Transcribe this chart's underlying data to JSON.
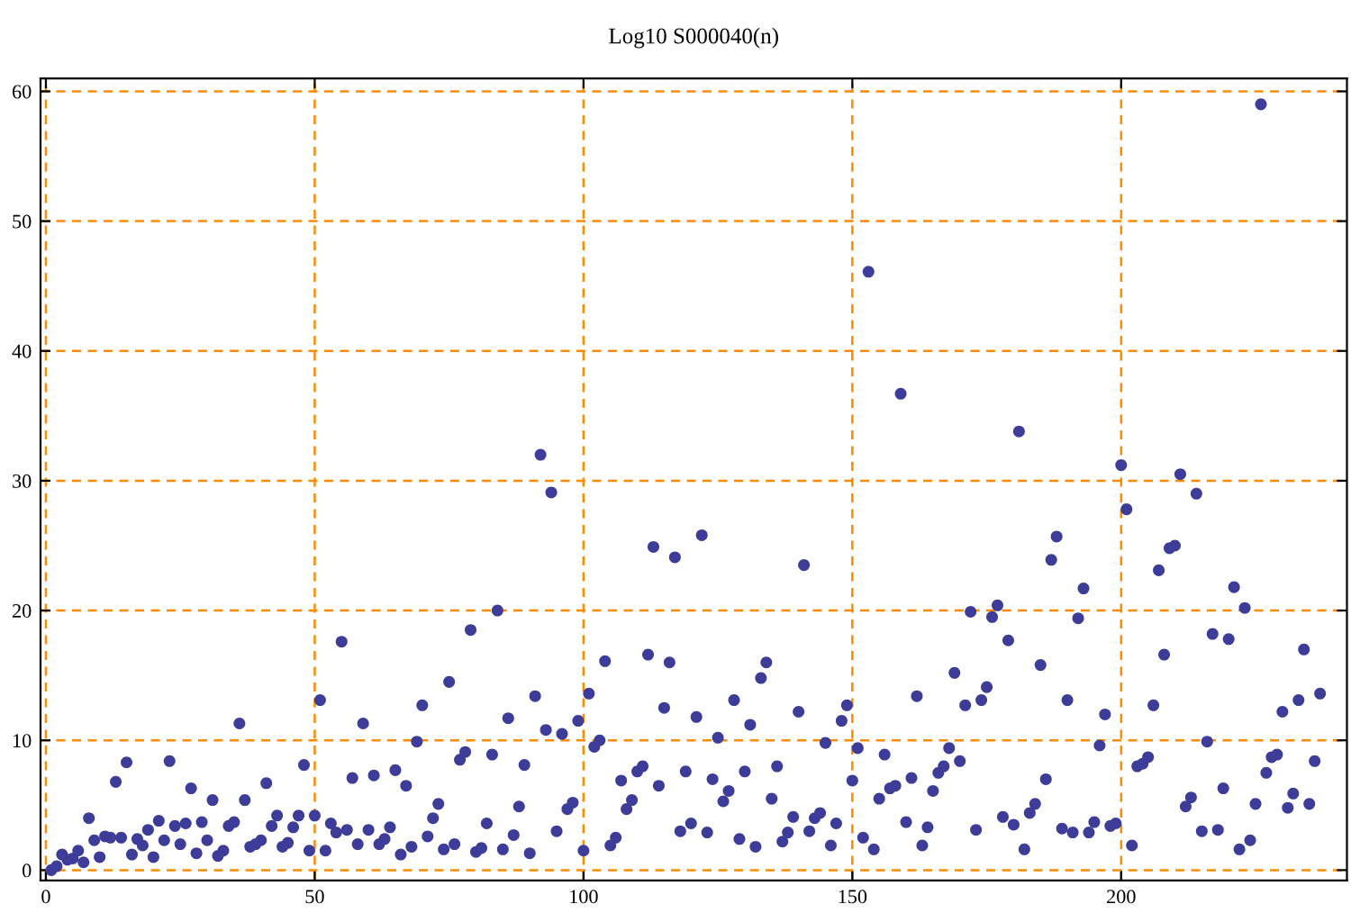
{
  "chart_data": {
    "type": "scatter",
    "title": "Log10 S000040(n)",
    "x": [
      1,
      2,
      3,
      4,
      5,
      6,
      7,
      8,
      9,
      10,
      11,
      12,
      13,
      14,
      15,
      16,
      17,
      18,
      19,
      20,
      21,
      22,
      23,
      24,
      25,
      26,
      27,
      28,
      29,
      30,
      31,
      32,
      33,
      34,
      35,
      36,
      37,
      38,
      39,
      40,
      41,
      42,
      43,
      44,
      45,
      46,
      47,
      48,
      49,
      50,
      51,
      52,
      53,
      54,
      55,
      56,
      57,
      58,
      59,
      60,
      61,
      62,
      63,
      64,
      65,
      66,
      67,
      68,
      69,
      70,
      71,
      72,
      73,
      74,
      75,
      76,
      77,
      78,
      79,
      80,
      81,
      82,
      83,
      84,
      85,
      86,
      87,
      88,
      89,
      90,
      91,
      92,
      93,
      94,
      95,
      96,
      97,
      98,
      99,
      100,
      101,
      102,
      103,
      104,
      105,
      106,
      107,
      108,
      109,
      110,
      111,
      112,
      113,
      114,
      115,
      116,
      117,
      118,
      119,
      120,
      121,
      122,
      123,
      124,
      125,
      126,
      127,
      128,
      129,
      130,
      131,
      132,
      133,
      134,
      135,
      136,
      137,
      138,
      139,
      140,
      141,
      142,
      143,
      144,
      145,
      146,
      147,
      148,
      149,
      150,
      151,
      152,
      153,
      154,
      155,
      156,
      157,
      158,
      159,
      160,
      161,
      162,
      163,
      164,
      165,
      166,
      167,
      168,
      169,
      170,
      171,
      172,
      173,
      174,
      175,
      176,
      177,
      178,
      179,
      180,
      181,
      182,
      183,
      184,
      185,
      186,
      187,
      188,
      189,
      190,
      191,
      192,
      193,
      194,
      195,
      196,
      197,
      198,
      199,
      200,
      201,
      202,
      203,
      204,
      205,
      206,
      207,
      208,
      209,
      210,
      211,
      212,
      213,
      214,
      215,
      216,
      217,
      218,
      219,
      220,
      221,
      222,
      223,
      224,
      225,
      226,
      227,
      228,
      229,
      230,
      231,
      232,
      233,
      234,
      235,
      236,
      237
    ],
    "values": [
      0.0,
      0.3,
      1.2,
      0.8,
      0.9,
      1.5,
      0.6,
      4.0,
      2.3,
      1.0,
      2.6,
      2.5,
      6.8,
      2.5,
      8.3,
      1.2,
      2.4,
      1.9,
      3.1,
      1.0,
      3.8,
      2.3,
      8.4,
      3.4,
      2.0,
      3.6,
      6.3,
      1.3,
      3.7,
      2.3,
      5.4,
      1.1,
      1.5,
      3.4,
      3.7,
      11.3,
      5.4,
      1.8,
      2.0,
      2.3,
      6.7,
      3.4,
      4.2,
      1.8,
      2.1,
      3.3,
      4.2,
      8.1,
      1.5,
      4.2,
      13.1,
      1.5,
      3.6,
      2.9,
      17.6,
      3.1,
      7.1,
      2.0,
      11.3,
      3.1,
      7.3,
      2.0,
      2.4,
      3.3,
      7.7,
      1.2,
      6.5,
      1.8,
      9.9,
      12.7,
      2.6,
      4.0,
      5.1,
      1.6,
      14.5,
      2.0,
      8.5,
      9.1,
      18.5,
      1.4,
      1.7,
      3.6,
      8.9,
      20.0,
      1.6,
      11.7,
      2.7,
      4.9,
      8.1,
      1.3,
      13.4,
      32.0,
      10.8,
      29.1,
      3.0,
      10.5,
      4.7,
      5.2,
      11.5,
      1.5,
      13.6,
      9.5,
      10.0,
      16.1,
      1.9,
      2.5,
      6.9,
      4.7,
      5.4,
      7.6,
      8.0,
      16.6,
      24.9,
      6.5,
      12.5,
      16.0,
      24.1,
      3.0,
      7.6,
      3.6,
      11.8,
      25.8,
      2.9,
      7.0,
      10.2,
      5.3,
      6.1,
      13.1,
      2.4,
      7.6,
      11.2,
      1.8,
      14.8,
      16.0,
      5.5,
      8.0,
      2.2,
      2.9,
      4.1,
      12.2,
      23.5,
      3.0,
      4.0,
      4.4,
      9.8,
      1.9,
      3.6,
      11.5,
      12.7,
      6.9,
      9.4,
      2.5,
      46.1,
      1.6,
      5.5,
      8.9,
      6.3,
      6.5,
      36.7,
      3.7,
      7.1,
      13.4,
      1.9,
      3.3,
      6.1,
      7.5,
      8.0,
      9.4,
      15.2,
      8.4,
      12.7,
      19.9,
      3.1,
      13.1,
      14.1,
      19.5,
      20.4,
      4.1,
      17.7,
      3.5,
      33.8,
      1.6,
      4.4,
      5.1,
      15.8,
      7.0,
      23.9,
      25.7,
      3.2,
      13.1,
      2.9,
      19.4,
      21.7,
      2.9,
      3.7,
      9.6,
      12.0,
      3.4,
      3.6,
      31.2,
      27.8,
      1.9,
      8.0,
      8.2,
      8.7,
      12.7,
      23.1,
      16.6,
      24.8,
      25.0,
      30.5,
      4.9,
      5.6,
      29.0,
      3.0,
      9.9,
      18.2,
      3.1,
      6.3,
      17.8,
      21.8,
      1.6,
      20.2,
      2.3,
      5.1,
      59.0,
      7.5,
      8.7,
      8.9,
      12.2,
      4.8,
      5.9,
      13.1,
      17.0,
      5.1,
      8.4,
      13.6
    ],
    "color": "#3d3d99",
    "marker": "circle",
    "xlim": [
      -1,
      242
    ],
    "ylim": [
      -0.8,
      61
    ],
    "xticks": [
      0,
      50,
      100,
      150,
      200
    ],
    "yticks": [
      0,
      10,
      20,
      30,
      40,
      50,
      60
    ],
    "grid": true
  }
}
